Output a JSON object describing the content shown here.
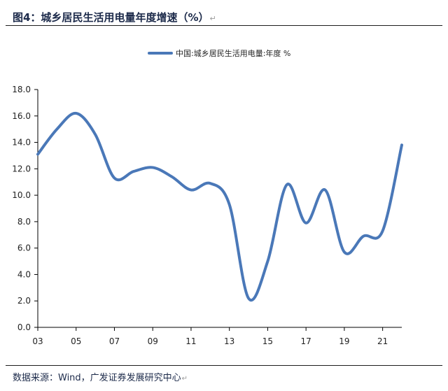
{
  "header": {
    "figure_title": "图4：城乡居民生活用电量年度增速（%）",
    "return_mark": "↵"
  },
  "footer": {
    "source_text": "数据来源：Wind，广发证券发展研究中心",
    "return_mark": "↵"
  },
  "colors": {
    "series": "#4a78b8",
    "axis": "#000000",
    "header_text": "#1c2a4a"
  },
  "chart_data": {
    "type": "line",
    "title": "",
    "xlabel": "",
    "ylabel": "",
    "grid": false,
    "legend": "top-center",
    "ylim": [
      0,
      18
    ],
    "xlim": [
      2003,
      2022
    ],
    "y_ticks": [
      "0.0",
      "2.0",
      "4.0",
      "6.0",
      "8.0",
      "10.0",
      "12.0",
      "14.0",
      "16.0",
      "18.0"
    ],
    "x_ticks": [
      {
        "year": 2003,
        "label": "03"
      },
      {
        "year": 2005,
        "label": "05"
      },
      {
        "year": 2007,
        "label": "07"
      },
      {
        "year": 2009,
        "label": "09"
      },
      {
        "year": 2011,
        "label": "11"
      },
      {
        "year": 2013,
        "label": "13"
      },
      {
        "year": 2015,
        "label": "15"
      },
      {
        "year": 2017,
        "label": "17"
      },
      {
        "year": 2019,
        "label": "19"
      },
      {
        "year": 2021,
        "label": "21"
      }
    ],
    "series": [
      {
        "name": "中国:城乡居民生活用电量:年度 %",
        "x": [
          2003,
          2004,
          2005,
          2006,
          2007,
          2008,
          2009,
          2010,
          2011,
          2012,
          2013,
          2014,
          2015,
          2016,
          2017,
          2018,
          2019,
          2020,
          2021,
          2022
        ],
        "y": [
          13.1,
          15.0,
          16.2,
          14.6,
          11.3,
          11.8,
          12.1,
          11.4,
          10.4,
          10.9,
          9.3,
          2.2,
          5.0,
          10.8,
          7.9,
          10.4,
          5.7,
          6.9,
          7.3,
          13.8
        ]
      }
    ]
  }
}
